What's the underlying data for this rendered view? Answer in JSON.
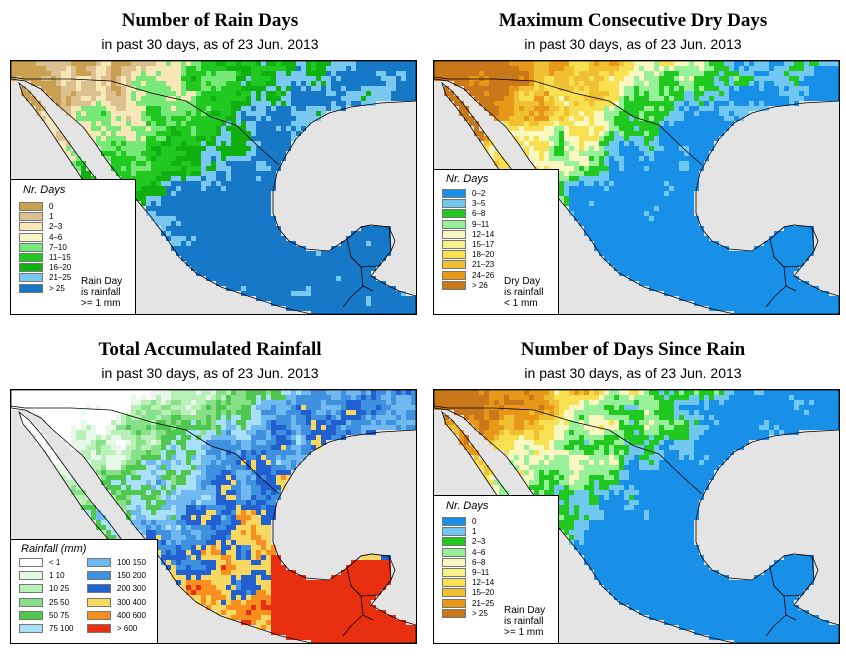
{
  "panels": [
    {
      "title": "Number of Rain Days",
      "subtitle": "in past 30 days, as of  23 Jun. 2013",
      "legend": {
        "title": "Nr. Days",
        "items": [
          {
            "label": "0",
            "color": "#c8a050"
          },
          {
            "label": "1",
            "color": "#dcc090"
          },
          {
            "label": "2–3",
            "color": "#f8e8b8"
          },
          {
            "label": "4–6",
            "color": "#f8f8c8"
          },
          {
            "label": "7–10",
            "color": "#78e878"
          },
          {
            "label": "11–15",
            "color": "#20c820"
          },
          {
            "label": "16–20",
            "color": "#10b010"
          },
          {
            "label": "21–25",
            "color": "#78c8f0"
          },
          {
            "label": "> 25",
            "color": "#1878c8"
          }
        ],
        "note": [
          "Rain Day",
          "is rainfall",
          ">= 1 mm"
        ]
      },
      "palette": [
        "#c8a050",
        "#dcc090",
        "#f8e8b8",
        "#78e878",
        "#20c820",
        "#10b010",
        "#78c8f0",
        "#1878c8"
      ]
    },
    {
      "title": "Maximum Consecutive Dry Days",
      "subtitle": "in past 30 days, as of  23 Jun. 2013",
      "legend": {
        "title": "Nr. Days",
        "items": [
          {
            "label": "0–2",
            "color": "#1890e8"
          },
          {
            "label": "3–5",
            "color": "#70c8f0"
          },
          {
            "label": "6–8",
            "color": "#20c820"
          },
          {
            "label": "9–11",
            "color": "#98f098"
          },
          {
            "label": "12–14",
            "color": "#f8f8c0"
          },
          {
            "label": "15–17",
            "color": "#f8f088"
          },
          {
            "label": "18–20",
            "color": "#f8e050"
          },
          {
            "label": "21–23",
            "color": "#f0c030"
          },
          {
            "label": "24–26",
            "color": "#e89818"
          },
          {
            "label": "> 26",
            "color": "#c87818"
          }
        ],
        "note": [
          "Dry Day",
          "is rainfall",
          "< 1 mm"
        ]
      },
      "palette": [
        "#c87818",
        "#e89818",
        "#f0c030",
        "#f8e050",
        "#f8f8c0",
        "#98f098",
        "#20c820",
        "#70c8f0",
        "#1890e8"
      ]
    },
    {
      "title": "Total Accumulated Rainfall",
      "subtitle": "in past 30 days, as of  23 Jun. 2013",
      "legend": {
        "title": "Rainfall (mm)",
        "items": [
          {
            "label": "< 1",
            "color": "#ffffff"
          },
          {
            "label": "1    10",
            "color": "#e8f8e8"
          },
          {
            "label": "10    25",
            "color": "#b8f0b8"
          },
          {
            "label": "25    50",
            "color": "#88e088"
          },
          {
            "label": "50    75",
            "color": "#50c850"
          },
          {
            "label": "75  100",
            "color": "#a8e0f8"
          },
          {
            "label": "100  150",
            "color": "#70b8f0"
          },
          {
            "label": "150  200",
            "color": "#4090e0"
          },
          {
            "label": "200  300",
            "color": "#2060d0"
          },
          {
            "label": "300  400",
            "color": "#f8d860"
          },
          {
            "label": "400  600",
            "color": "#f89020"
          },
          {
            "label": "> 600",
            "color": "#e83010"
          }
        ],
        "note": []
      },
      "palette": [
        "#ffffff",
        "#e8f8e8",
        "#b8f0b8",
        "#88e088",
        "#50c850",
        "#a8e0f8",
        "#70b8f0",
        "#4090e0",
        "#2060d0",
        "#f8d860",
        "#f89020",
        "#e83010"
      ]
    },
    {
      "title": "Number of Days Since Rain",
      "subtitle": "in past 30 days, as of  23 Jun. 2013",
      "legend": {
        "title": "Nr. Days",
        "items": [
          {
            "label": "0",
            "color": "#1890e8"
          },
          {
            "label": "1",
            "color": "#70c8f0"
          },
          {
            "label": "2–3",
            "color": "#20c820"
          },
          {
            "label": "4–6",
            "color": "#98f098"
          },
          {
            "label": "6–8",
            "color": "#f8f8c0"
          },
          {
            "label": "9–11",
            "color": "#f8f088"
          },
          {
            "label": "12–14",
            "color": "#f8e050"
          },
          {
            "label": "15–20",
            "color": "#f0c030"
          },
          {
            "label": "21–25",
            "color": "#e89818"
          },
          {
            "label": "> 25",
            "color": "#c87818"
          }
        ],
        "note": [
          "Rain Day",
          "is rainfall",
          ">= 1 mm"
        ]
      },
      "palette": [
        "#c87818",
        "#e89818",
        "#f0c030",
        "#f8e050",
        "#f8f8c0",
        "#98f098",
        "#20c820",
        "#70c8f0",
        "#1890e8"
      ]
    }
  ]
}
